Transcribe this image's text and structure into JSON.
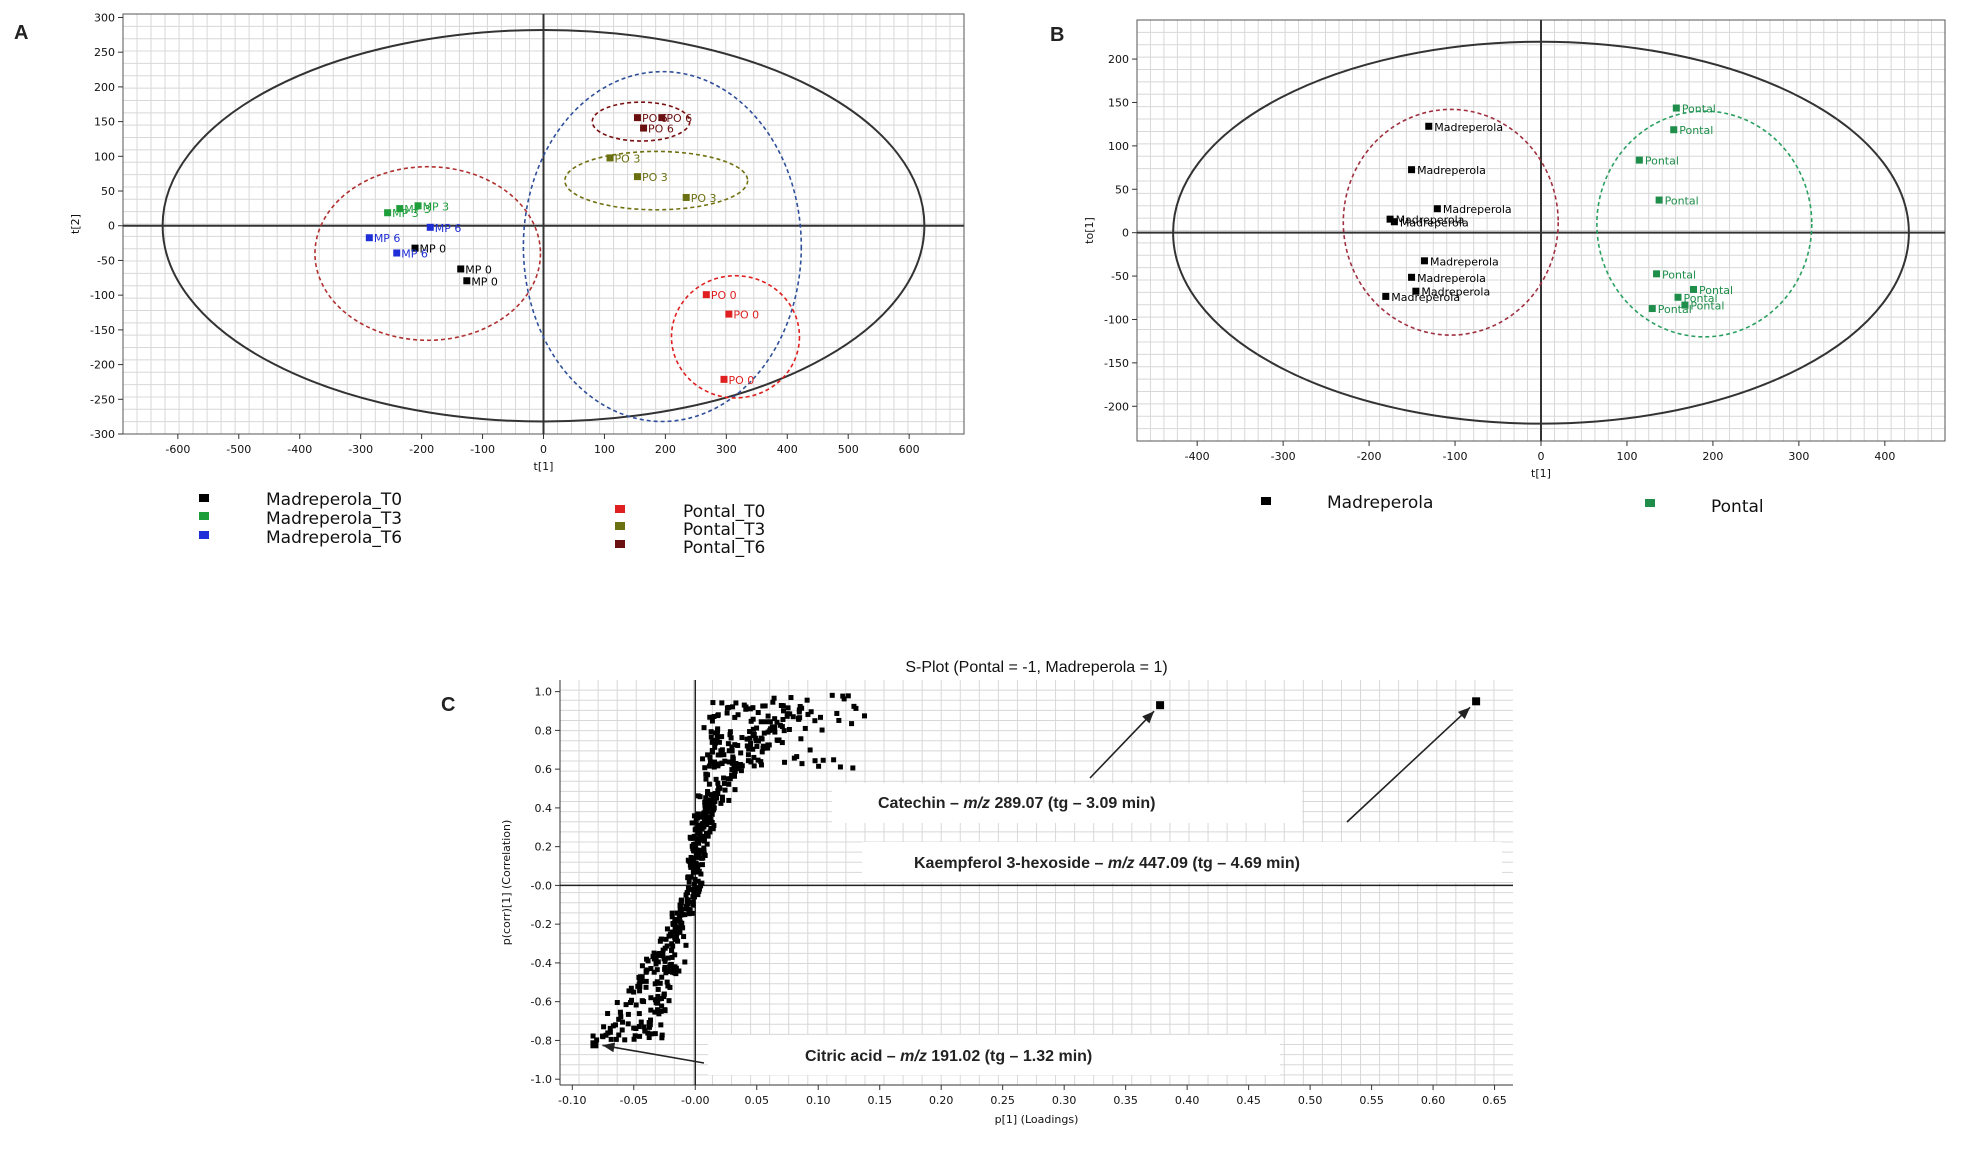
{
  "panels": {
    "a": "A",
    "b": "B",
    "c": "C"
  },
  "chart_data": [
    {
      "id": "A",
      "type": "scatter",
      "xlabel": "t[1]",
      "ylabel": "t[2]",
      "xlim": [
        -690,
        690
      ],
      "ylim": [
        -300,
        305
      ],
      "xticks": [
        -600,
        -500,
        -400,
        -300,
        -200,
        -100,
        0,
        100,
        200,
        300,
        400,
        500,
        600
      ],
      "yticks": [
        300,
        250,
        200,
        150,
        100,
        50,
        0,
        -50,
        -100,
        -150,
        -200,
        -250,
        -300
      ],
      "grid": true,
      "ellipse": {
        "cx": 0,
        "cy": 0,
        "rx": 625,
        "ry": 282
      },
      "series": [
        {
          "name": "Madreperola_T0",
          "color": "#000000",
          "points": [
            {
              "x": -135,
              "y": -63,
              "label": "MP 0"
            },
            {
              "x": -125,
              "y": -80,
              "label": "MP 0"
            },
            {
              "x": -210,
              "y": -33,
              "label": "MP 0"
            }
          ]
        },
        {
          "name": "Madreperola_T3",
          "color": "#1e9e3a",
          "points": [
            {
              "x": -255,
              "y": 18,
              "label": "MP 3"
            },
            {
              "x": -235,
              "y": 24,
              "label": "MP 3"
            },
            {
              "x": -205,
              "y": 28,
              "label": "MP 3"
            }
          ]
        },
        {
          "name": "Madreperola_T6",
          "color": "#1f2fd8",
          "points": [
            {
              "x": -285,
              "y": -18,
              "label": "MP 6"
            },
            {
              "x": -240,
              "y": -40,
              "label": "MP 6"
            },
            {
              "x": -185,
              "y": -3,
              "label": "MP 6"
            }
          ]
        },
        {
          "name": "Pontal_T0",
          "color": "#e02020",
          "points": [
            {
              "x": 268,
              "y": -100,
              "label": "PO 0"
            },
            {
              "x": 305,
              "y": -128,
              "label": "PO 0"
            },
            {
              "x": 297,
              "y": -222,
              "label": "PO 0"
            }
          ]
        },
        {
          "name": "Pontal_T3",
          "color": "#6b7010",
          "points": [
            {
              "x": 110,
              "y": 97,
              "label": "PO 3"
            },
            {
              "x": 155,
              "y": 70,
              "label": "PO 3"
            },
            {
              "x": 235,
              "y": 40,
              "label": "PO 3"
            }
          ]
        },
        {
          "name": "Pontal_T6",
          "color": "#6b1010",
          "points": [
            {
              "x": 155,
              "y": 155,
              "label": "PO 6"
            },
            {
              "x": 195,
              "y": 155,
              "label": "PO 6"
            },
            {
              "x": 165,
              "y": 140,
              "label": "PO 6"
            }
          ]
        }
      ],
      "group_ellipses": [
        {
          "cx": -190,
          "cy": -40,
          "rx": 185,
          "ry": 125,
          "color": "#b03030"
        },
        {
          "cx": 195,
          "cy": -30,
          "rx": 228,
          "ry": 252,
          "color": "#2f4f9a"
        },
        {
          "cx": 160,
          "cy": 150,
          "rx": 80,
          "ry": 28,
          "color": "#7a1010"
        },
        {
          "cx": 185,
          "cy": 65,
          "rx": 150,
          "ry": 42,
          "color": "#707010"
        },
        {
          "cx": 315,
          "cy": -160,
          "rx": 105,
          "ry": 88,
          "color": "#e02020"
        }
      ]
    },
    {
      "id": "B",
      "type": "scatter",
      "xlabel": "t[1]",
      "ylabel": "to[1]",
      "xlim": [
        -470,
        470
      ],
      "ylim": [
        -240,
        245
      ],
      "xticks": [
        -400,
        -300,
        -200,
        -100,
        0,
        100,
        200,
        300,
        400
      ],
      "yticks": [
        200,
        150,
        100,
        50,
        0,
        -50,
        -100,
        -150,
        -200
      ],
      "grid": true,
      "ellipse": {
        "cx": 0,
        "cy": 0,
        "rx": 428,
        "ry": 220
      },
      "series": [
        {
          "name": "Madreperola",
          "color": "#000000",
          "points": [
            {
              "x": -130,
              "y": 122,
              "label": "Madreperola"
            },
            {
              "x": -150,
              "y": 72,
              "label": "Madreperola"
            },
            {
              "x": -120,
              "y": 27,
              "label": "Madreperola"
            },
            {
              "x": -175,
              "y": 15,
              "label": "Madreperola"
            },
            {
              "x": -170,
              "y": 12,
              "label": "Madreperola"
            },
            {
              "x": -135,
              "y": -33,
              "label": "Madreperola"
            },
            {
              "x": -150,
              "y": -52,
              "label": "Madreperola"
            },
            {
              "x": -145,
              "y": -68,
              "label": "Madreperola"
            },
            {
              "x": -180,
              "y": -74,
              "label": "Madreperola"
            }
          ]
        },
        {
          "name": "Pontal",
          "color": "#1e8e4a",
          "points": [
            {
              "x": 158,
              "y": 143,
              "label": "Pontal"
            },
            {
              "x": 155,
              "y": 118,
              "label": "Pontal"
            },
            {
              "x": 115,
              "y": 83,
              "label": "Pontal"
            },
            {
              "x": 138,
              "y": 37,
              "label": "Pontal"
            },
            {
              "x": 135,
              "y": -48,
              "label": "Pontal"
            },
            {
              "x": 178,
              "y": -66,
              "label": "Pontal"
            },
            {
              "x": 160,
              "y": -75,
              "label": "Pontal"
            },
            {
              "x": 168,
              "y": -84,
              "label": "Pontal"
            },
            {
              "x": 130,
              "y": -88,
              "label": "Pontal"
            }
          ]
        }
      ],
      "group_ellipses": [
        {
          "cx": -105,
          "cy": 12,
          "rx": 125,
          "ry": 130,
          "color": "#a03040"
        },
        {
          "cx": 190,
          "cy": 10,
          "rx": 125,
          "ry": 130,
          "color": "#2aa060"
        }
      ]
    },
    {
      "id": "C",
      "type": "scatter",
      "title": "S-Plot (Pontal = -1, Madreperola = 1)",
      "xlabel": "p[1] (Loadings)",
      "ylabel": "p(corr)[1] (Correlation)",
      "xlim": [
        -0.11,
        0.665
      ],
      "ylim": [
        -1.03,
        1.06
      ],
      "xticks": [
        "-0.10",
        "-0.05",
        "-0.00",
        "0.05",
        "0.10",
        "0.15",
        "0.20",
        "0.25",
        "0.30",
        "0.35",
        "0.40",
        "0.45",
        "0.50",
        "0.55",
        "0.60",
        "0.65"
      ],
      "yticks": [
        "1.0",
        "0.8",
        "0.6",
        "0.4",
        "0.2",
        "-0.0",
        "-0.2",
        "-0.4",
        "-0.6",
        "-0.8",
        "-1.0"
      ],
      "grid": true,
      "highlighted_points": [
        {
          "x": 0.378,
          "y": 0.93
        },
        {
          "x": 0.635,
          "y": 0.95
        },
        {
          "x": -0.082,
          "y": -0.82
        }
      ],
      "annotations": [
        {
          "name": "Catechin",
          "mz": "289.07",
          "tg": "3.09 min",
          "target": {
            "x": 0.378,
            "y": 0.93
          }
        },
        {
          "name": "Kaempferol 3-hexoside",
          "mz": "447.09",
          "tg": "4.69 min",
          "target": {
            "x": 0.635,
            "y": 0.95
          }
        },
        {
          "name": "Citric acid",
          "mz": "191.02",
          "tg": "1.32 min",
          "target": {
            "x": -0.082,
            "y": -0.82
          }
        }
      ]
    }
  ]
}
